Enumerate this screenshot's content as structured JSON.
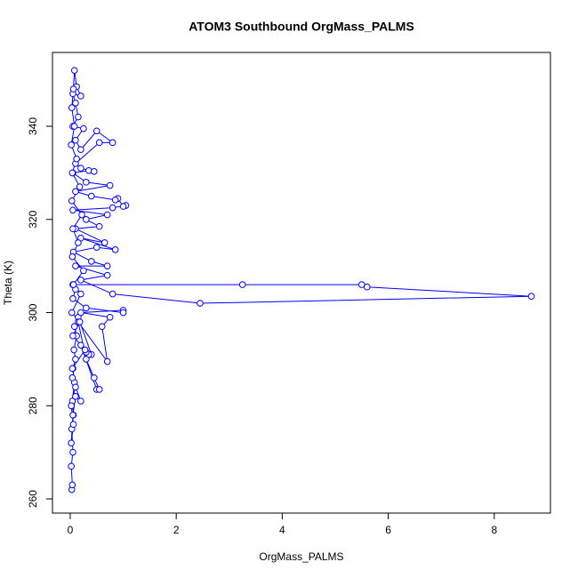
{
  "chart_data": {
    "type": "line",
    "markers": true,
    "color": "#0000ff",
    "title": "ATOM3 Southbound OrgMass_PALMS",
    "xlabel": "OrgMass_PALMS",
    "ylabel": "Theta (K)",
    "xlim": [
      -0.335,
      9.06
    ],
    "ylim": [
      256.95,
      355.85
    ],
    "xticks": [
      0,
      2,
      4,
      6,
      8
    ],
    "yticks": [
      260,
      280,
      300,
      320,
      340
    ],
    "x": [
      0.03,
      0.04,
      0.02,
      0.05,
      0.03,
      0.06,
      0.04,
      0.08,
      0.05,
      0.1,
      0.07,
      0.12,
      0.08,
      0.15,
      0.4,
      0.35,
      0.3,
      0.2,
      0.5,
      0.55,
      0.45,
      0.3,
      0.15,
      0.7,
      0.6,
      0.75,
      0.2,
      1.0,
      1.0,
      0.3,
      0.05,
      0.1,
      0.05,
      3.25,
      5.5,
      5.6,
      8.7,
      2.45,
      0.8,
      0.2,
      0.7,
      0.1,
      0.7,
      0.4,
      0.06,
      0.5,
      0.85,
      0.2,
      0.65,
      0.1,
      0.55,
      0.3,
      0.7,
      0.05,
      0.8,
      1.05,
      1.0,
      0.9,
      0.85,
      0.4,
      0.1,
      0.75,
      0.3,
      0.05,
      0.35,
      0.45,
      0.2,
      0.1,
      0.55,
      0.8,
      0.5,
      0.2,
      0.1,
      0.25,
      0.05,
      0.15,
      0.1,
      0.05,
      0.2,
      0.12,
      0.08,
      0.06,
      0.03,
      0.08,
      0.02,
      0.12,
      0.04,
      0.18,
      0.03,
      0.22,
      0.05,
      0.15,
      0.04,
      0.25,
      0.06,
      0.2,
      0.03,
      0.18,
      0.05,
      0.28,
      0.04,
      0.1,
      0.02,
      0.06,
      0.02,
      0.05,
      0.1,
      0.2,
      0.04
    ],
    "series": [
      {
        "name": "Theta",
        "values": [
          262,
          263,
          267,
          270,
          275,
          278,
          281,
          285,
          288,
          290,
          292,
          295,
          297,
          299,
          291,
          291,
          291.5,
          293,
          283.5,
          283.5,
          286,
          290,
          298,
          289.5,
          297,
          299,
          300,
          300.5,
          300,
          301,
          303,
          305,
          306,
          306,
          306,
          305.5,
          303.5,
          302,
          304,
          307,
          308,
          310,
          310,
          311,
          313,
          314,
          313.5,
          316,
          315,
          318,
          318.5,
          320,
          321,
          322,
          322.5,
          323,
          322.8,
          324.5,
          324.2,
          325,
          326,
          327.3,
          328,
          330,
          330.5,
          330.3,
          331,
          332,
          336.5,
          336.5,
          339,
          335,
          337,
          339.5,
          340,
          342,
          345,
          347,
          346.5,
          348.5,
          352,
          348,
          344,
          340,
          336,
          333,
          330,
          327,
          324,
          321,
          318,
          315,
          312,
          309,
          306,
          304,
          300,
          298,
          295,
          292,
          288,
          284,
          280,
          276,
          272,
          278,
          282,
          281,
          286
        ]
      }
    ]
  }
}
